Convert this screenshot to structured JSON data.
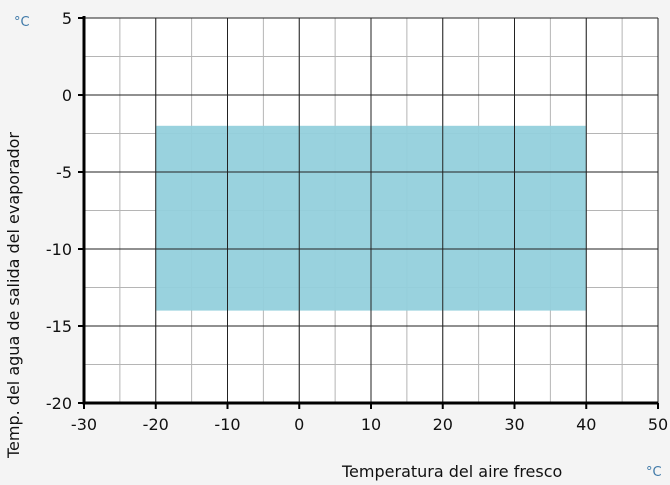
{
  "chart_data": {
    "type": "area",
    "xlabel": "Temperatura del aire fresco",
    "ylabel": "Temp. del agua de salida del evaporador",
    "x_unit": "°C",
    "y_unit": "°C",
    "xlim": [
      -30,
      50
    ],
    "ylim": [
      -20,
      5
    ],
    "x_ticks": [
      -30,
      -20,
      -10,
      0,
      10,
      20,
      30,
      40,
      50
    ],
    "x_tick_labels": [
      "-30",
      "-20",
      "-10",
      "0",
      "10",
      "20",
      "30",
      "40",
      "50"
    ],
    "y_ticks": [
      5,
      0,
      -5,
      -10,
      -15,
      -20
    ],
    "y_tick_labels": [
      "5",
      "0",
      "-5",
      "-10",
      "-15",
      "-20"
    ],
    "grid": true,
    "grid_minor_step_x": 5,
    "grid_minor_step_y": 2.5,
    "region": {
      "x": [
        -20,
        40
      ],
      "y": [
        -14,
        -2
      ],
      "color": "#93d0dc"
    },
    "colors": {
      "major_grid": "#222222",
      "minor_grid": "#b5b5b5",
      "axis": "#000000",
      "background": "#ffffff"
    }
  }
}
